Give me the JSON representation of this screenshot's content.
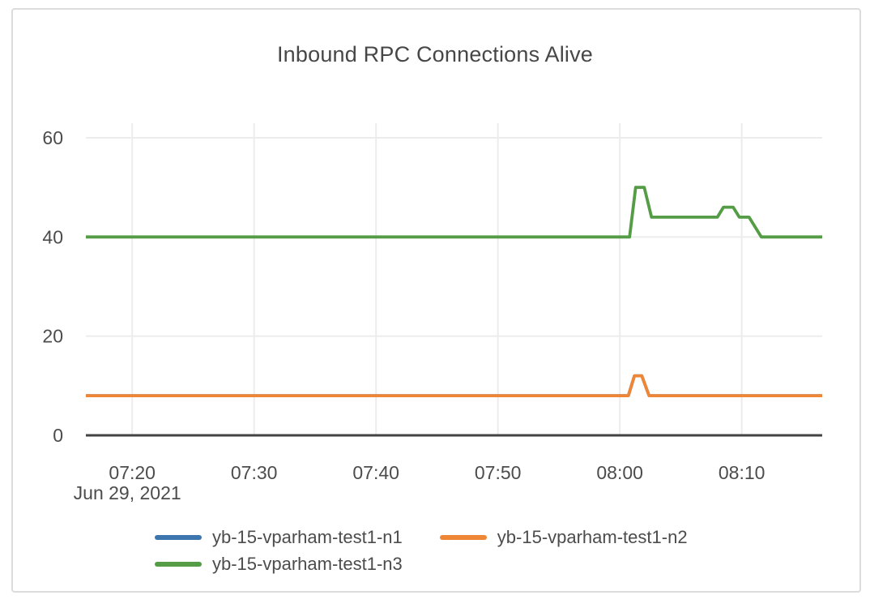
{
  "chart_data": {
    "type": "line",
    "title": "Inbound RPC Connections Alive",
    "x_axis": {
      "date_label": "Jun 29, 2021",
      "t_max": 60.4,
      "ticks": [
        {
          "label": "07:20",
          "t": 3.8
        },
        {
          "label": "07:30",
          "t": 13.8
        },
        {
          "label": "07:40",
          "t": 23.8
        },
        {
          "label": "07:50",
          "t": 33.8
        },
        {
          "label": "08:00",
          "t": 43.8
        },
        {
          "label": "08:10",
          "t": 53.8
        }
      ]
    },
    "y_axis": {
      "ticks": [
        0,
        20,
        40,
        60
      ],
      "grid_values": [
        20,
        40,
        60
      ],
      "ylim": [
        0,
        63
      ]
    },
    "series": [
      {
        "name": "yb-15-vparham-test1-n1",
        "color": "#3d76ae",
        "points": [
          [
            0,
            8
          ],
          [
            44.5,
            8
          ],
          [
            45.0,
            12
          ],
          [
            45.6,
            12
          ],
          [
            46.2,
            8
          ],
          [
            60.4,
            8
          ]
        ]
      },
      {
        "name": "yb-15-vparham-test1-n2",
        "color": "#ef8636",
        "points": [
          [
            0,
            8
          ],
          [
            44.5,
            8
          ],
          [
            45.0,
            12
          ],
          [
            45.6,
            12
          ],
          [
            46.2,
            8
          ],
          [
            60.4,
            8
          ]
        ]
      },
      {
        "name": "yb-15-vparham-test1-n3",
        "color": "#549c45",
        "points": [
          [
            0,
            40
          ],
          [
            44.6,
            40
          ],
          [
            45.1,
            50
          ],
          [
            45.8,
            50
          ],
          [
            46.4,
            44
          ],
          [
            51.8,
            44
          ],
          [
            52.3,
            46
          ],
          [
            53.1,
            46
          ],
          [
            53.6,
            44
          ],
          [
            54.4,
            44
          ],
          [
            55.4,
            40
          ],
          [
            60.4,
            40
          ]
        ]
      }
    ],
    "legend_position": "bottom",
    "colors": {
      "axis_text": "#4c4c4c",
      "gridline": "#ececec",
      "axis_line": "#424242",
      "card_border": "#dcdcdc"
    }
  }
}
